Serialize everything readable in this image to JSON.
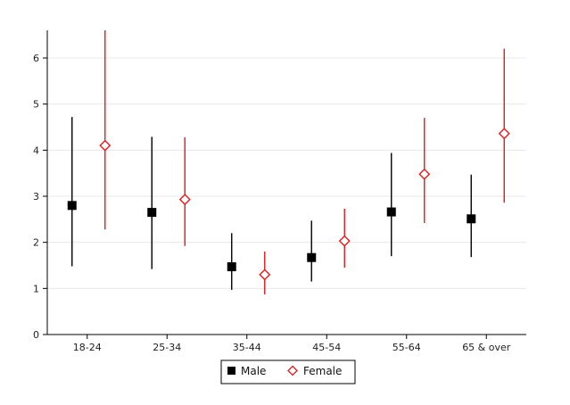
{
  "chart_data": {
    "type": "scatter",
    "subtype": "error-bar",
    "title": "",
    "xlabel": "",
    "ylabel": "",
    "categories": [
      "18-24",
      "25-34",
      "35-44",
      "45-54",
      "55-64",
      "65 & over"
    ],
    "ylim": [
      0,
      6.6
    ],
    "yticks": [
      0,
      1,
      2,
      3,
      4,
      5,
      6
    ],
    "grid": "horizontal",
    "legend_position": "bottom-center",
    "series": [
      {
        "name": "Male",
        "marker": "filled-square",
        "color": "#000000",
        "values": [
          2.8,
          2.65,
          1.47,
          1.67,
          2.66,
          2.51
        ],
        "lower": [
          1.48,
          1.42,
          0.97,
          1.15,
          1.7,
          1.68
        ],
        "upper": [
          4.72,
          4.29,
          2.2,
          2.47,
          3.94,
          3.47
        ]
      },
      {
        "name": "Female",
        "marker": "hollow-diamond",
        "color": "#e41a1c",
        "values": [
          4.1,
          2.93,
          1.3,
          2.03,
          3.48,
          4.36
        ],
        "lower": [
          2.28,
          1.92,
          0.87,
          1.45,
          2.42,
          2.86
        ],
        "upper": [
          6.6,
          4.28,
          1.8,
          2.73,
          4.7,
          6.2
        ]
      }
    ]
  }
}
